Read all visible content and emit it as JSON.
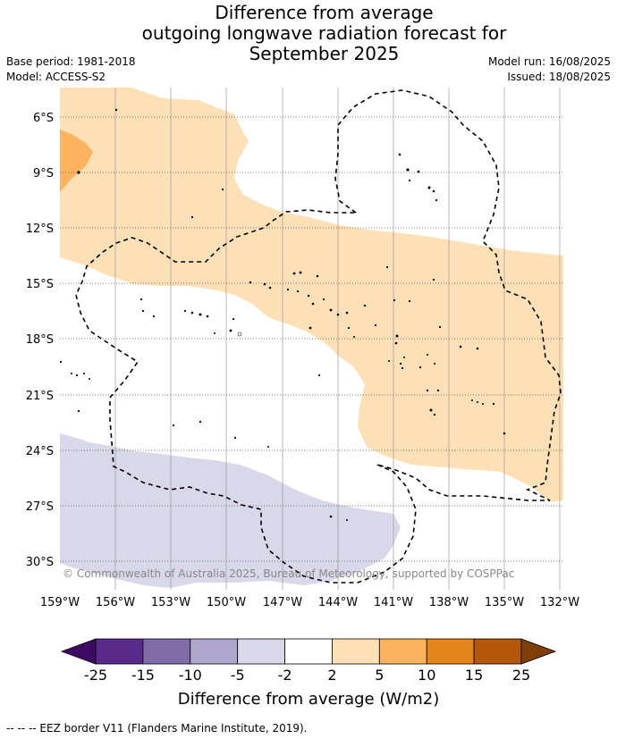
{
  "title": {
    "line1": "Difference from average",
    "line2": "outgoing longwave radiation forecast for",
    "line3": "September 2025"
  },
  "meta": {
    "base_period": "Base period: 1981-2018",
    "model": "Model: ACCESS-S2",
    "model_run": "Model run: 16/08/2025",
    "issued": "Issued: 18/08/2025"
  },
  "map": {
    "lat_labels": [
      "6°S",
      "9°S",
      "12°S",
      "15°S",
      "18°S",
      "21°S",
      "24°S",
      "27°S",
      "30°S"
    ],
    "lon_labels": [
      "159°W",
      "156°W",
      "153°W",
      "150°W",
      "147°W",
      "144°W",
      "141°W",
      "138°W",
      "135°W",
      "132°W"
    ],
    "copyright": "© Commonwealth of Australia 2025, Bureau of Meteorology, supported by COSPPac",
    "colors": {
      "light_orange": "#fde0b6",
      "orange": "#fdb35d",
      "lavender": "#d8d8ea"
    }
  },
  "colorbar": {
    "ticks": [
      "-25",
      "-15",
      "-10",
      "-5",
      "-2",
      "2",
      "5",
      "10",
      "15",
      "25"
    ],
    "colors": [
      "#3f0a63",
      "#5a2a8a",
      "#7f6ca9",
      "#b0a7cf",
      "#d8d8ea",
      "#ffffff",
      "#fde0b6",
      "#fdb35d",
      "#e58419",
      "#b45708",
      "#7f3d07"
    ],
    "label": "Difference from average (W/m2)"
  },
  "footer": {
    "legend": "--  --  -- EEZ border V11 (Flanders Marine Institute, 2019)."
  }
}
